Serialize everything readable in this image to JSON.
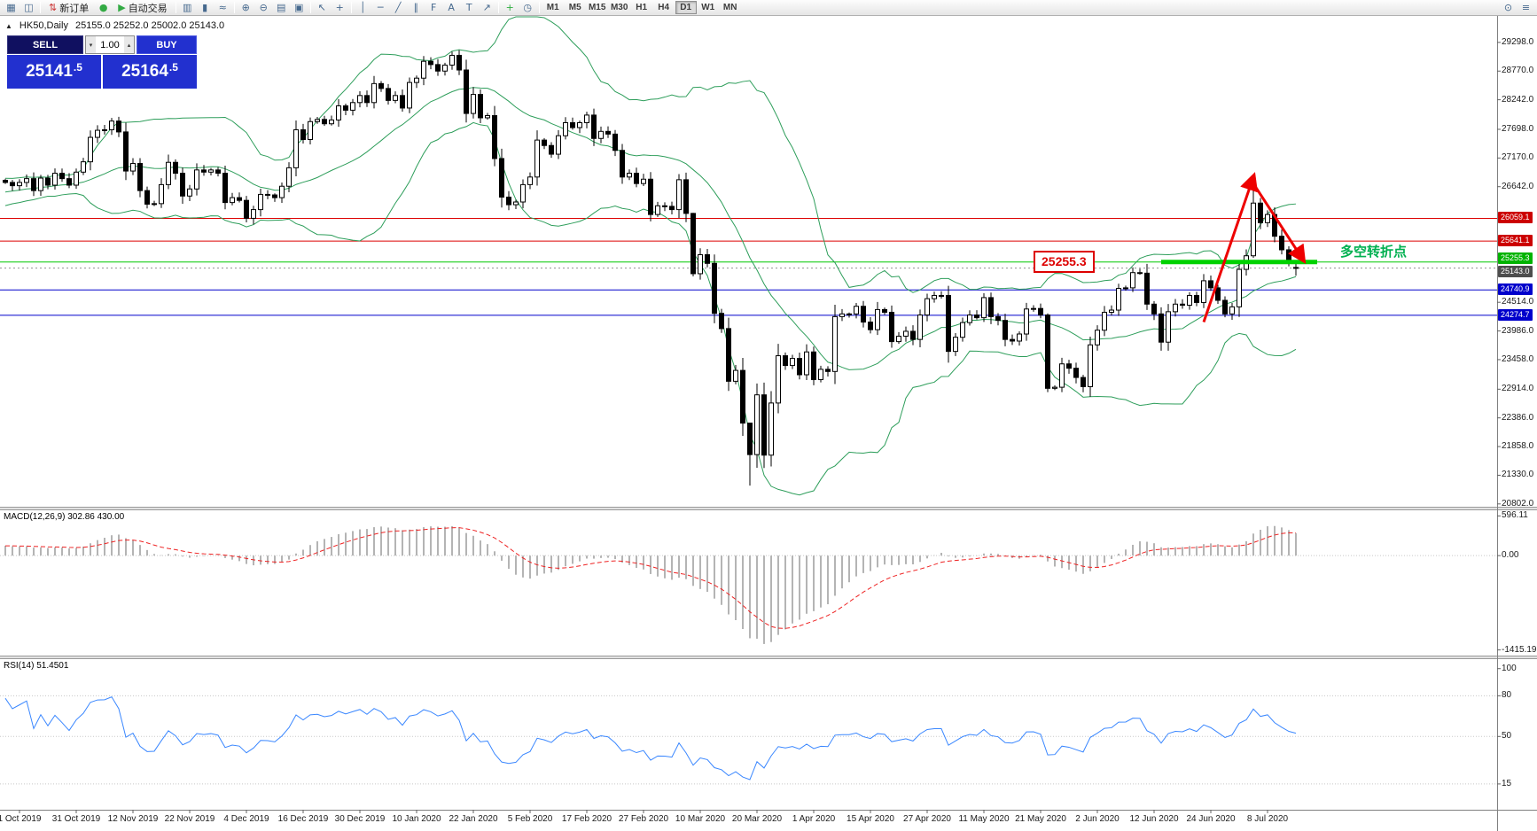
{
  "toolbar": {
    "new_order_label": "新订单",
    "autotrading_label": "自动交易",
    "timeframes": [
      "M1",
      "M5",
      "M15",
      "M30",
      "H1",
      "H4",
      "D1",
      "W1",
      "MN"
    ],
    "active_timeframe": "D1",
    "items": [
      {
        "t": "icon",
        "base": "new-chart",
        "g": "▦"
      },
      {
        "t": "icon",
        "base": "profiles",
        "g": "◫"
      },
      {
        "t": "sep"
      },
      {
        "t": "labeled",
        "base": "new-order",
        "g": "⇅",
        "gc": "#cc3333",
        "label_key": "new_order_label"
      },
      {
        "t": "icon",
        "base": "metaeditor",
        "g": "●",
        "gc": "#33aa44"
      },
      {
        "t": "labeled",
        "base": "autotrading",
        "g": "▶",
        "gc": "#33aa44",
        "label_key": "autotrading_label"
      },
      {
        "t": "sep"
      },
      {
        "t": "icon",
        "base": "bar-chart",
        "g": "▥"
      },
      {
        "t": "icon",
        "base": "candlestick-chart",
        "g": "▮"
      },
      {
        "t": "icon",
        "base": "line-chart",
        "g": "≈"
      },
      {
        "t": "sep"
      },
      {
        "t": "icon",
        "base": "zoom-in",
        "g": "⊕"
      },
      {
        "t": "icon",
        "base": "zoom-out",
        "g": "⊖"
      },
      {
        "t": "icon",
        "base": "tile-windows",
        "g": "▤"
      },
      {
        "t": "icon",
        "base": "arrange-windows",
        "g": "▣"
      },
      {
        "t": "sep"
      },
      {
        "t": "icon",
        "base": "cursor",
        "g": "↖"
      },
      {
        "t": "icon",
        "base": "crosshair",
        "g": "+"
      },
      {
        "t": "sep"
      },
      {
        "t": "icon",
        "base": "vertical-line",
        "g": "│"
      },
      {
        "t": "icon",
        "base": "horizontal-line",
        "g": "─"
      },
      {
        "t": "icon",
        "base": "trendline",
        "g": "╱"
      },
      {
        "t": "icon",
        "base": "equidistant-channel",
        "g": "∥"
      },
      {
        "t": "icon",
        "base": "fibonacci",
        "g": "F"
      },
      {
        "t": "icon",
        "base": "text",
        "g": "A"
      },
      {
        "t": "icon",
        "base": "text-label",
        "g": "T"
      },
      {
        "t": "icon",
        "base": "arrows-tool",
        "g": "↗"
      },
      {
        "t": "sep"
      },
      {
        "t": "icon",
        "base": "indicators",
        "g": "+",
        "gc": "#2fae3f"
      },
      {
        "t": "icon",
        "base": "periods",
        "g": "◷"
      },
      {
        "t": "sep"
      },
      {
        "t": "tf"
      },
      {
        "t": "spacer"
      },
      {
        "t": "icon",
        "base": "search",
        "g": "⊙"
      },
      {
        "t": "icon",
        "base": "menu",
        "g": "≡"
      }
    ]
  },
  "chart_header": {
    "symbol_timeframe": "HK50,Daily",
    "ohlc": "25155.0 25252.0 25002.0 25143.0"
  },
  "trade_panel": {
    "sell_label": "SELL",
    "buy_label": "BUY",
    "volume": "1.00",
    "sell_price_int": "25141",
    "sell_price_frac": ".5",
    "buy_price_int": "25164",
    "buy_price_frac": ".5"
  },
  "annotations": {
    "price_callout": {
      "text": "25255.3",
      "color": "#dd0000"
    },
    "turning_point_label": {
      "text": "多空转折点",
      "color": "#00b050"
    },
    "highlight_line": {
      "price": 25255.3,
      "from_index": 163,
      "to_index": 185,
      "color": "#00d200"
    },
    "arrow_up": {
      "from": {
        "index": 169,
        "price": 24150
      },
      "to": {
        "index": 176,
        "price": 26820
      }
    },
    "arrow_down": {
      "from": {
        "index": 176,
        "price": 26700
      },
      "to": {
        "index": 183,
        "price": 25300
      }
    },
    "arrow_color": "#ee0000"
  },
  "colors": {
    "band_green": "#2e9e5b",
    "rsi_blue": "#3a87ff",
    "macd_gray": "#b4b4b4",
    "signal_red": "#ee2222",
    "candle_up_fill": "#ffffff",
    "candle_down_fill": "#000000",
    "candle_stroke": "#000000",
    "panel_blue": "#2230cf",
    "panel_dark": "#101060",
    "line_red": "#dd0000",
    "line_blue": "#0000cc",
    "line_green": "#00c800",
    "annotation_green": "#00b050"
  },
  "chart_data": [
    {
      "type": "candlestick",
      "symbol": "HK50",
      "timeframe": "Daily",
      "ohlc_display": {
        "open": "25155.0",
        "high": "25252.0",
        "low": "25002.0",
        "close": "25143.0"
      },
      "price_range_top": 29785,
      "price_range_bottom": 20750,
      "y_axis_labels": [
        "29298.0",
        "28770.0",
        "28242.0",
        "27698.0",
        "27170.0",
        "26642.0",
        "24514.0",
        "23986.0",
        "23458.0",
        "22914.0",
        "22386.0",
        "21858.0",
        "21330.0",
        "20802.0"
      ],
      "price_badges": [
        {
          "text": "26059.1",
          "bg": "#cc0000",
          "dy": 0
        },
        {
          "text": "25641.1",
          "bg": "#cc0000",
          "dy": 0
        },
        {
          "text": "25255.3",
          "bg": "#00b300",
          "dy": -4
        },
        {
          "text": "25143.0",
          "bg": "#4d4d4d",
          "dy": 4
        },
        {
          "text": "24740.9",
          "bg": "#0000cc",
          "dy": 0
        },
        {
          "text": "24274.7",
          "bg": "#0000cc",
          "dy": 0
        }
      ],
      "hlines": [
        {
          "price": 26059.1,
          "color": "#dd0000"
        },
        {
          "price": 25641.1,
          "color": "#dd0000"
        },
        {
          "price": 25255.3,
          "color": "#00c800"
        },
        {
          "price": 24740.9,
          "color": "#0000cc"
        },
        {
          "price": 24274.7,
          "color": "#0000cc"
        }
      ],
      "current_price": 25143.0,
      "indicators": {
        "bollinger_period": 20,
        "bollinger_deviation": 2
      },
      "warmup_closes": [
        25900,
        25950,
        26000,
        26080,
        26050,
        26120,
        26180,
        26150,
        26220,
        26280,
        26250,
        26320,
        26380,
        26350,
        26420,
        26380,
        26450,
        26500,
        26480,
        26550,
        26520,
        26580,
        26620,
        26600,
        26650,
        26620,
        26680,
        26650,
        26700,
        26720
      ],
      "closes": [
        26720,
        26660,
        26720,
        26790,
        26570,
        26800,
        26670,
        26890,
        26790,
        26670,
        26910,
        27100,
        27550,
        27680,
        27690,
        27850,
        27650,
        26930,
        27070,
        26570,
        26320,
        26330,
        26680,
        27090,
        26890,
        26470,
        26600,
        26950,
        26910,
        26950,
        26890,
        26350,
        26440,
        26390,
        26060,
        26220,
        26500,
        26490,
        26440,
        26650,
        26990,
        27690,
        27510,
        27840,
        27880,
        27800,
        27870,
        28130,
        28050,
        28190,
        28320,
        28190,
        28540,
        28450,
        28230,
        28320,
        28090,
        28560,
        28640,
        28950,
        28890,
        28770,
        28880,
        29060,
        28790,
        27990,
        28340,
        27910,
        27950,
        27160,
        26450,
        26310,
        26360,
        26680,
        26820,
        27500,
        27400,
        27240,
        27580,
        27820,
        27730,
        27820,
        27960,
        27530,
        27660,
        27610,
        27310,
        26820,
        26890,
        26700,
        26780,
        26130,
        26290,
        26280,
        26220,
        26770,
        26150,
        25040,
        25390,
        25230,
        24310,
        24030,
        23060,
        23260,
        22290,
        21710,
        22810,
        21700,
        22660,
        23530,
        23350,
        23480,
        23180,
        23600,
        23090,
        23280,
        23240,
        24250,
        24300,
        24300,
        24440,
        24150,
        24010,
        24380,
        24330,
        23790,
        23890,
        23980,
        23830,
        24280,
        24580,
        24640,
        24640,
        23610,
        23870,
        24140,
        24280,
        24230,
        24600,
        24250,
        24180,
        23830,
        23800,
        23930,
        24390,
        24400,
        24280,
        22930,
        22950,
        23380,
        23300,
        23130,
        22960,
        23730,
        24000,
        24330,
        24370,
        24770,
        24780,
        25060,
        25050,
        24480,
        24300,
        23780,
        24340,
        24480,
        24460,
        24640,
        24510,
        24910,
        24780,
        24550,
        24300,
        24430,
        25120,
        25370,
        26340,
        25980,
        26130,
        25730,
        25480,
        25250,
        25143
      ],
      "open_overrides": {
        "182": 25155
      },
      "wick_overrides": {
        "97": [
          26160,
          24990
        ],
        "105": [
          22280,
          21139
        ],
        "147": [
          24310,
          22860
        ],
        "176": [
          26782,
          25330
        ],
        "182": [
          25252,
          25002
        ]
      },
      "date_labels": [
        {
          "label": "1 Oct 2019",
          "index": 2
        },
        {
          "label": "31 Oct 2019",
          "index": 10
        },
        {
          "label": "12 Nov 2019",
          "index": 18
        },
        {
          "label": "22 Nov 2019",
          "index": 26
        },
        {
          "label": "4 Dec 2019",
          "index": 34
        },
        {
          "label": "16 Dec 2019",
          "index": 42
        },
        {
          "label": "30 Dec 2019",
          "index": 50
        },
        {
          "label": "10 Jan 2020",
          "index": 58
        },
        {
          "label": "22 Jan 2020",
          "index": 66
        },
        {
          "label": "5 Feb 2020",
          "index": 74
        },
        {
          "label": "17 Feb 2020",
          "index": 82
        },
        {
          "label": "27 Feb 2020",
          "index": 90
        },
        {
          "label": "10 Mar 2020",
          "index": 98
        },
        {
          "label": "20 Mar 2020",
          "index": 106
        },
        {
          "label": "1 Apr 2020",
          "index": 114
        },
        {
          "label": "15 Apr 2020",
          "index": 122
        },
        {
          "label": "27 Apr 2020",
          "index": 130
        },
        {
          "label": "11 May 2020",
          "index": 138
        },
        {
          "label": "21 May 2020",
          "index": 146
        },
        {
          "label": "2 Jun 2020",
          "index": 154
        },
        {
          "label": "12 Jun 2020",
          "index": 162
        },
        {
          "label": "24 Jun 2020",
          "index": 170
        },
        {
          "label": "8 Jul 2020",
          "index": 178
        }
      ]
    },
    {
      "type": "macd",
      "label": "MACD(12,26,9) 302.86 430.00",
      "params": {
        "fast": 12,
        "slow": 26,
        "signal": 9
      },
      "current_values": {
        "macd": "302.86",
        "signal": "430.00"
      },
      "ylim": [
        680,
        -1500
      ],
      "axis_labels": [
        "596.11",
        "0.00",
        "-1415.19"
      ],
      "derived_from": "closes"
    },
    {
      "type": "rsi",
      "label": "RSI(14) 51.4501",
      "period": 14,
      "current_value": "51.4501",
      "ylim": [
        107,
        -4
      ],
      "axis_labels": [
        "100",
        "80",
        "50",
        "15"
      ],
      "levels": [
        80,
        50,
        15
      ],
      "derived_from": "closes"
    }
  ]
}
